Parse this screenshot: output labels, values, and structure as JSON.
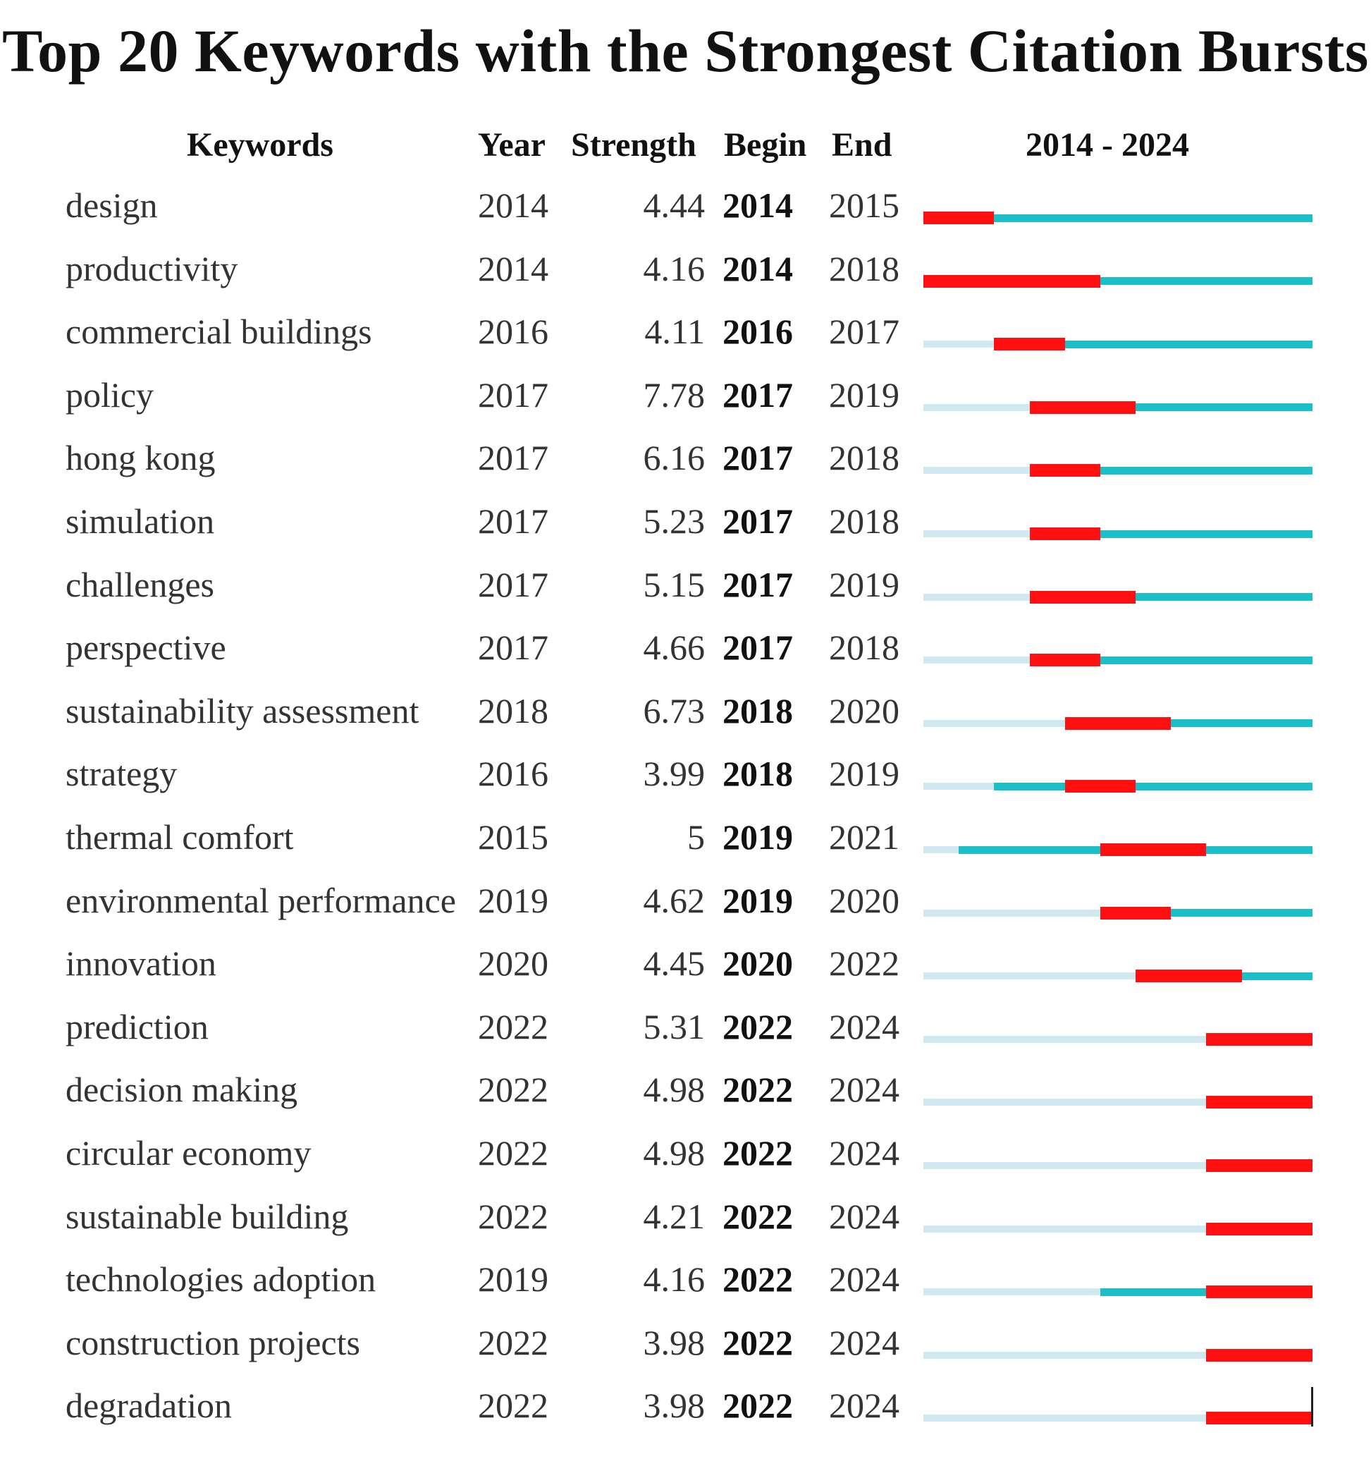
{
  "chart_data": {
    "type": "table",
    "title": "Top 20 Keywords with the Strongest Citation Bursts",
    "columns": [
      "Keywords",
      "Year",
      "Strength",
      "Begin",
      "End",
      "2014 - 2024"
    ],
    "timeline": {
      "start": 2014,
      "end": 2024
    },
    "colors": {
      "burst": "#ff0f0f",
      "active": "#1bbfc7",
      "inactive": "#cfe9ee"
    },
    "rows": [
      {
        "keyword": "design",
        "year": "2014",
        "strength": "4.44",
        "begin": "2014",
        "end": "2015"
      },
      {
        "keyword": "productivity",
        "year": "2014",
        "strength": "4.16",
        "begin": "2014",
        "end": "2018"
      },
      {
        "keyword": "commercial buildings",
        "year": "2016",
        "strength": "4.11",
        "begin": "2016",
        "end": "2017"
      },
      {
        "keyword": "policy",
        "year": "2017",
        "strength": "7.78",
        "begin": "2017",
        "end": "2019"
      },
      {
        "keyword": "hong kong",
        "year": "2017",
        "strength": "6.16",
        "begin": "2017",
        "end": "2018"
      },
      {
        "keyword": "simulation",
        "year": "2017",
        "strength": "5.23",
        "begin": "2017",
        "end": "2018"
      },
      {
        "keyword": "challenges",
        "year": "2017",
        "strength": "5.15",
        "begin": "2017",
        "end": "2019"
      },
      {
        "keyword": "perspective",
        "year": "2017",
        "strength": "4.66",
        "begin": "2017",
        "end": "2018"
      },
      {
        "keyword": "sustainability assessment",
        "year": "2018",
        "strength": "6.73",
        "begin": "2018",
        "end": "2020"
      },
      {
        "keyword": "strategy",
        "year": "2016",
        "strength": "3.99",
        "begin": "2018",
        "end": "2019"
      },
      {
        "keyword": "thermal comfort",
        "year": "2015",
        "strength": "5",
        "begin": "2019",
        "end": "2021"
      },
      {
        "keyword": "environmental performance",
        "year": "2019",
        "strength": "4.62",
        "begin": "2019",
        "end": "2020"
      },
      {
        "keyword": "innovation",
        "year": "2020",
        "strength": "4.45",
        "begin": "2020",
        "end": "2022"
      },
      {
        "keyword": "prediction",
        "year": "2022",
        "strength": "5.31",
        "begin": "2022",
        "end": "2024"
      },
      {
        "keyword": "decision making",
        "year": "2022",
        "strength": "4.98",
        "begin": "2022",
        "end": "2024"
      },
      {
        "keyword": "circular economy",
        "year": "2022",
        "strength": "4.98",
        "begin": "2022",
        "end": "2024"
      },
      {
        "keyword": "sustainable building",
        "year": "2022",
        "strength": "4.21",
        "begin": "2022",
        "end": "2024"
      },
      {
        "keyword": "technologies adoption",
        "year": "2019",
        "strength": "4.16",
        "begin": "2022",
        "end": "2024"
      },
      {
        "keyword": "construction projects",
        "year": "2022",
        "strength": "3.98",
        "begin": "2022",
        "end": "2024"
      },
      {
        "keyword": "degradation",
        "year": "2022",
        "strength": "3.98",
        "begin": "2022",
        "end": "2024"
      }
    ]
  }
}
